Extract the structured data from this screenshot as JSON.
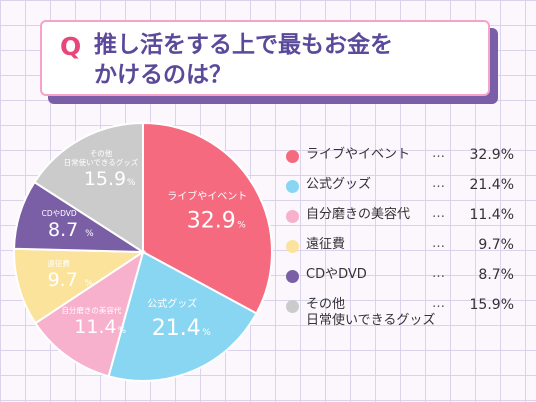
{
  "title": {
    "q_mark": "Q",
    "line1": "推し活をする上で最もお金を",
    "line2": "かけるのは？"
  },
  "chart_data": {
    "type": "pie",
    "title": "推し活をする上で最もお金をかけるのは？",
    "unit": "%",
    "slices": [
      {
        "label": "ライブやイベント",
        "label_lines": [
          "ライブやイベント"
        ],
        "value": 32.9,
        "color": "#f56a7f"
      },
      {
        "label": "公式グッズ",
        "label_lines": [
          "公式グッズ"
        ],
        "value": 21.4,
        "color": "#89d6f3"
      },
      {
        "label": "自分磨きの美容代",
        "label_lines": [
          "自分磨きの美容代"
        ],
        "value": 11.4,
        "color": "#f7b1cd"
      },
      {
        "label": "遠征費",
        "label_lines": [
          "遠征費"
        ],
        "value": 9.7,
        "color": "#fbe39c"
      },
      {
        "label": "CDやDVD",
        "label_lines": [
          "CDやDVD"
        ],
        "value": 8.7,
        "color": "#7a5fa6"
      },
      {
        "label": "その他 日常使いできるグッズ",
        "label_lines": [
          "その他",
          "日常使いできるグッズ"
        ],
        "value": 15.9,
        "color": "#cbcbcb"
      }
    ],
    "legend_position": "right"
  }
}
